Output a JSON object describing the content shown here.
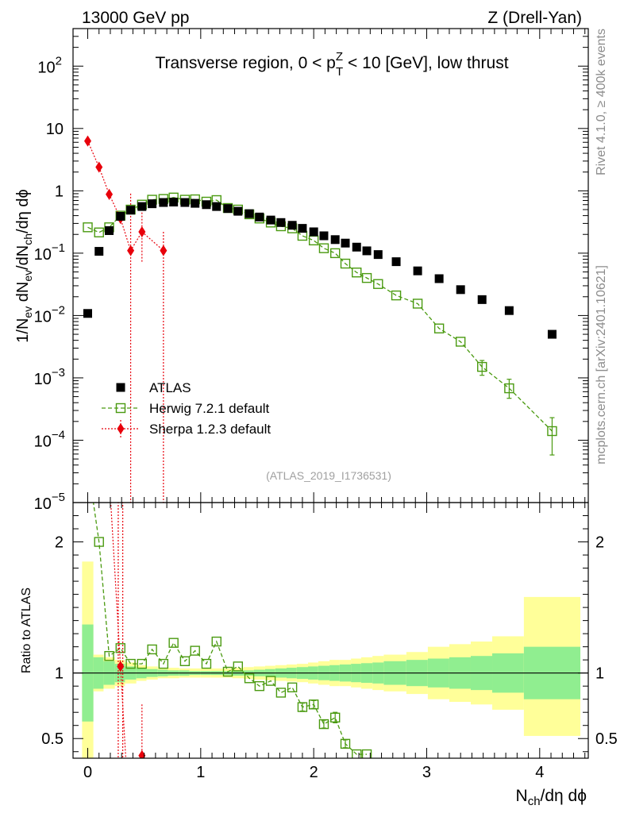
{
  "header": {
    "left": "13000 GeV pp",
    "right": "Z (Drell-Yan)"
  },
  "side_labels": {
    "rivet": "Rivet 4.1.0, ≥ 400k events",
    "mcplots": "mcplots.cern.ch [arXiv:2401.10621]"
  },
  "chart_data": [
    {
      "type": "scatter",
      "panel": "main",
      "title": "Transverse region, 0 < p_T^Z < 10 [GeV], low thrust",
      "title_parts": {
        "a": "Transverse region, 0 < p",
        "sup": "Z",
        "sub": "T",
        "b": " < 10 [GeV], low thrust"
      },
      "watermark": "(ATLAS_2019_I1736531)",
      "ylabel": "1/N_ev dN_ev/dN_ch/dη dϕ",
      "yscale": "log",
      "xlim": [
        -0.13,
        4.43
      ],
      "ylim": [
        1e-05,
        400
      ],
      "x_ticks": [
        "0",
        "1",
        "2",
        "3",
        "4"
      ],
      "y_ticks": [
        {
          "base": "10",
          "exp": "2",
          "value": 100
        },
        {
          "base": "10",
          "exp": "",
          "value": 10
        },
        {
          "base": "1",
          "exp": "",
          "value": 1
        },
        {
          "base": "10",
          "exp": "−1",
          "value": 0.1
        },
        {
          "base": "10",
          "exp": "−2",
          "value": 0.01
        },
        {
          "base": "10",
          "exp": "−3",
          "value": 0.001
        },
        {
          "base": "10",
          "exp": "−4",
          "value": 0.0001
        },
        {
          "base": "10",
          "exp": "−5",
          "value": 1e-05
        }
      ],
      "legend_position": "lower-left",
      "series": [
        {
          "name": "ATLAS",
          "color": "#000000",
          "marker": "filled-square",
          "x": [
            0.0,
            0.1,
            0.19,
            0.29,
            0.38,
            0.48,
            0.57,
            0.67,
            0.76,
            0.86,
            0.95,
            1.05,
            1.14,
            1.24,
            1.33,
            1.43,
            1.52,
            1.62,
            1.71,
            1.81,
            1.9,
            2.0,
            2.09,
            2.19,
            2.28,
            2.38,
            2.47,
            2.57,
            2.73,
            2.92,
            3.11,
            3.3,
            3.49,
            3.73,
            4.11
          ],
          "y": [
            0.0108,
            0.107,
            0.23,
            0.39,
            0.49,
            0.56,
            0.62,
            0.65,
            0.66,
            0.65,
            0.63,
            0.6,
            0.56,
            0.52,
            0.47,
            0.43,
            0.38,
            0.34,
            0.31,
            0.28,
            0.25,
            0.22,
            0.19,
            0.165,
            0.145,
            0.125,
            0.109,
            0.095,
            0.073,
            0.052,
            0.039,
            0.026,
            0.018,
            0.012,
            0.005
          ]
        },
        {
          "name": "Herwig 7.2.1 default",
          "color": "#4a9a10",
          "marker": "open-square",
          "line": "dashed",
          "x": [
            0.0,
            0.1,
            0.19,
            0.29,
            0.38,
            0.48,
            0.57,
            0.67,
            0.76,
            0.86,
            0.95,
            1.05,
            1.14,
            1.24,
            1.33,
            1.43,
            1.52,
            1.62,
            1.71,
            1.81,
            1.9,
            2.0,
            2.09,
            2.19,
            2.28,
            2.38,
            2.47,
            2.57,
            2.73,
            2.92,
            3.11,
            3.3,
            3.49,
            3.73,
            4.11
          ],
          "y": [
            0.26,
            0.215,
            0.26,
            0.4,
            0.5,
            0.6,
            0.72,
            0.74,
            0.78,
            0.72,
            0.73,
            0.67,
            0.71,
            0.53,
            0.5,
            0.42,
            0.36,
            0.31,
            0.27,
            0.25,
            0.19,
            0.16,
            0.12,
            0.1,
            0.068,
            0.049,
            0.04,
            0.032,
            0.021,
            0.0155,
            0.0062,
            0.0038,
            0.0015,
            0.00068,
            0.00014
          ]
        },
        {
          "name": "Sherpa 1.2.3 default",
          "color": "#e8000b",
          "marker": "filled-diamond",
          "line": "dotted",
          "x": [
            0.0,
            0.1,
            0.19,
            0.29,
            0.38,
            0.48,
            0.67
          ],
          "y": [
            6.3,
            2.4,
            0.88,
            0.36,
            0.11,
            0.22,
            0.11
          ]
        }
      ]
    },
    {
      "type": "scatter",
      "panel": "ratio",
      "ylabel": "Ratio to ATLAS",
      "xlabel": "N_ch/dη dϕ",
      "xlabel_parts": {
        "a": "N",
        "sub": "ch",
        "b": "/dη dϕ"
      },
      "xlim": [
        -0.13,
        4.43
      ],
      "ylim": [
        0.35,
        2.3
      ],
      "y_ticks": [
        "0.5",
        "1",
        "2"
      ],
      "bands": {
        "edges": [
          -0.05,
          0.05,
          0.14,
          0.24,
          0.33,
          0.43,
          0.52,
          0.62,
          0.71,
          0.81,
          0.9,
          1.0,
          1.09,
          1.19,
          1.28,
          1.38,
          1.47,
          1.57,
          1.66,
          1.76,
          1.85,
          1.95,
          2.04,
          2.14,
          2.23,
          2.33,
          2.42,
          2.52,
          2.62,
          2.82,
          3.01,
          3.2,
          3.39,
          3.58,
          3.86,
          4.36
        ],
        "inner_lo": [
          0.63,
          0.88,
          0.91,
          0.93,
          0.95,
          0.96,
          0.97,
          0.975,
          0.98,
          0.98,
          0.985,
          0.985,
          0.985,
          0.985,
          0.98,
          0.98,
          0.975,
          0.97,
          0.965,
          0.96,
          0.955,
          0.95,
          0.945,
          0.94,
          0.935,
          0.93,
          0.925,
          0.92,
          0.91,
          0.9,
          0.89,
          0.88,
          0.87,
          0.85,
          0.8
        ],
        "inner_hi": [
          1.37,
          1.12,
          1.09,
          1.07,
          1.05,
          1.04,
          1.03,
          1.025,
          1.02,
          1.02,
          1.015,
          1.015,
          1.015,
          1.015,
          1.02,
          1.02,
          1.025,
          1.03,
          1.035,
          1.04,
          1.045,
          1.05,
          1.055,
          1.06,
          1.065,
          1.07,
          1.075,
          1.08,
          1.09,
          1.1,
          1.11,
          1.12,
          1.13,
          1.15,
          1.2
        ],
        "outer_lo": [
          0.3,
          0.86,
          0.88,
          0.9,
          0.92,
          0.94,
          0.95,
          0.96,
          0.96,
          0.965,
          0.965,
          0.965,
          0.965,
          0.965,
          0.96,
          0.955,
          0.95,
          0.945,
          0.94,
          0.935,
          0.93,
          0.92,
          0.91,
          0.9,
          0.9,
          0.89,
          0.88,
          0.87,
          0.86,
          0.84,
          0.8,
          0.78,
          0.76,
          0.72,
          0.52
        ],
        "outer_hi": [
          1.85,
          1.14,
          1.12,
          1.1,
          1.08,
          1.06,
          1.05,
          1.04,
          1.04,
          1.035,
          1.035,
          1.035,
          1.035,
          1.035,
          1.04,
          1.045,
          1.05,
          1.055,
          1.06,
          1.065,
          1.07,
          1.08,
          1.09,
          1.1,
          1.1,
          1.11,
          1.12,
          1.13,
          1.14,
          1.16,
          1.2,
          1.22,
          1.24,
          1.28,
          1.58
        ],
        "inner_color": "#90ee90",
        "outer_color": "#ffff99"
      },
      "series": [
        {
          "name": "Herwig 7.2.1 default",
          "color": "#4a9a10",
          "x": [
            0.1,
            0.19,
            0.29,
            0.38,
            0.48,
            0.57,
            0.67,
            0.76,
            0.86,
            0.95,
            1.05,
            1.14,
            1.24,
            1.33,
            1.43,
            1.52,
            1.62,
            1.71,
            1.81,
            1.9,
            2.0,
            2.09,
            2.19,
            2.28,
            2.38,
            2.47
          ],
          "y": [
            2.0,
            1.13,
            1.19,
            1.07,
            1.07,
            1.18,
            1.07,
            1.23,
            1.09,
            1.17,
            1.07,
            1.24,
            1.01,
            1.05,
            0.96,
            0.9,
            0.94,
            0.85,
            0.89,
            0.74,
            0.76,
            0.61,
            0.66,
            0.46,
            0.38,
            0.38
          ]
        },
        {
          "name": "Sherpa 1.2.3 default",
          "color": "#e8000b",
          "x": [
            0.29,
            0.48
          ],
          "y": [
            1.05,
            0.37
          ]
        }
      ]
    }
  ]
}
